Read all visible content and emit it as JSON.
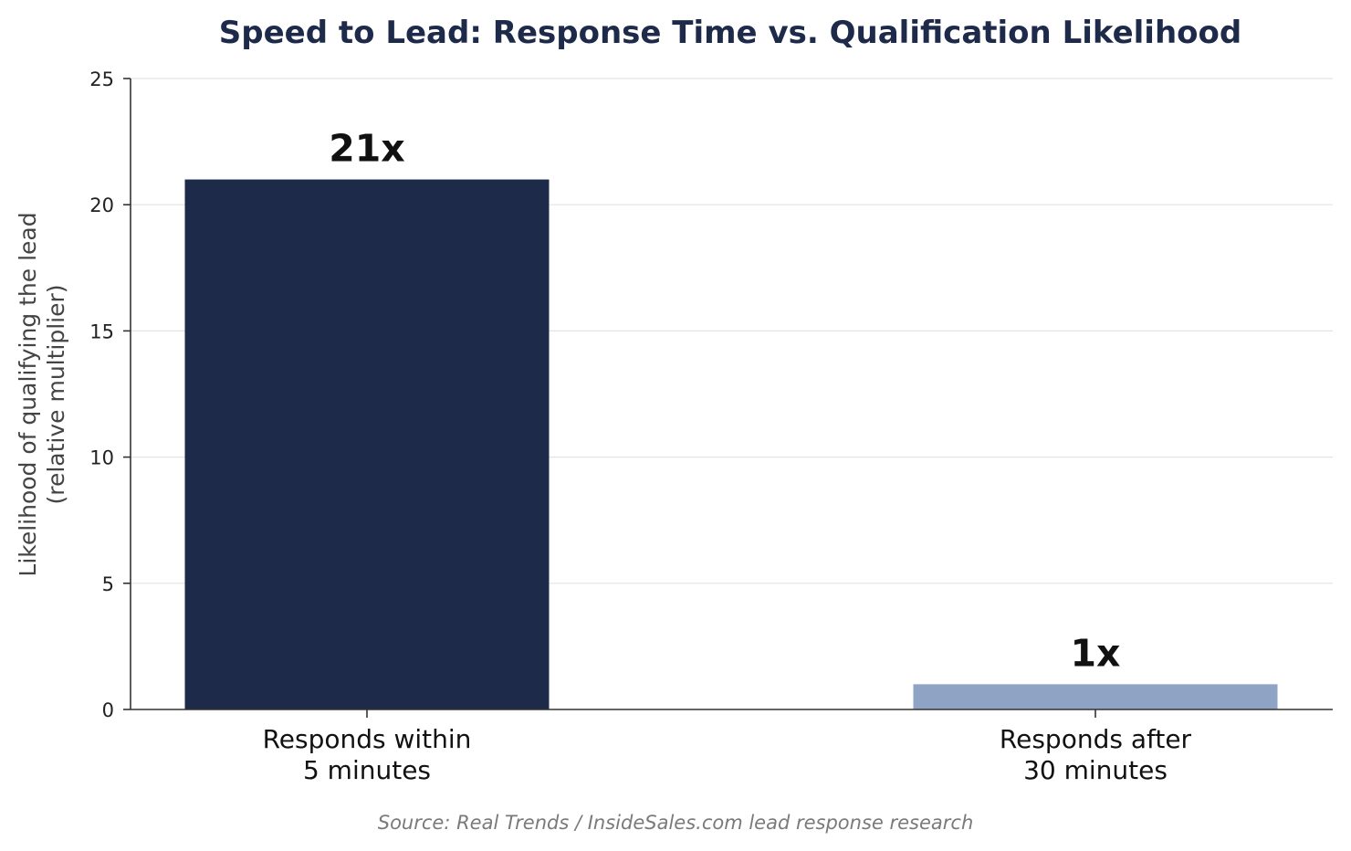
{
  "chart_data": {
    "type": "bar",
    "title": "Speed to Lead: Response Time vs. Qualification Likelihood",
    "ylabel_lines": [
      "Likelihood of qualifying the lead",
      "(relative multiplier)"
    ],
    "xlabel": "",
    "categories": [
      [
        "Responds within",
        "5 minutes"
      ],
      [
        "Responds after",
        "30 minutes"
      ]
    ],
    "values": [
      21,
      1
    ],
    "data_labels": [
      "21x",
      "1x"
    ],
    "colors": [
      "#1e2a4a",
      "#8fa3c4"
    ],
    "ylim": [
      0,
      25
    ],
    "yticks": [
      0,
      5,
      10,
      15,
      20,
      25
    ],
    "grid": true,
    "legend": "none",
    "source": "Source: Real Trends / InsideSales.com lead response research"
  }
}
